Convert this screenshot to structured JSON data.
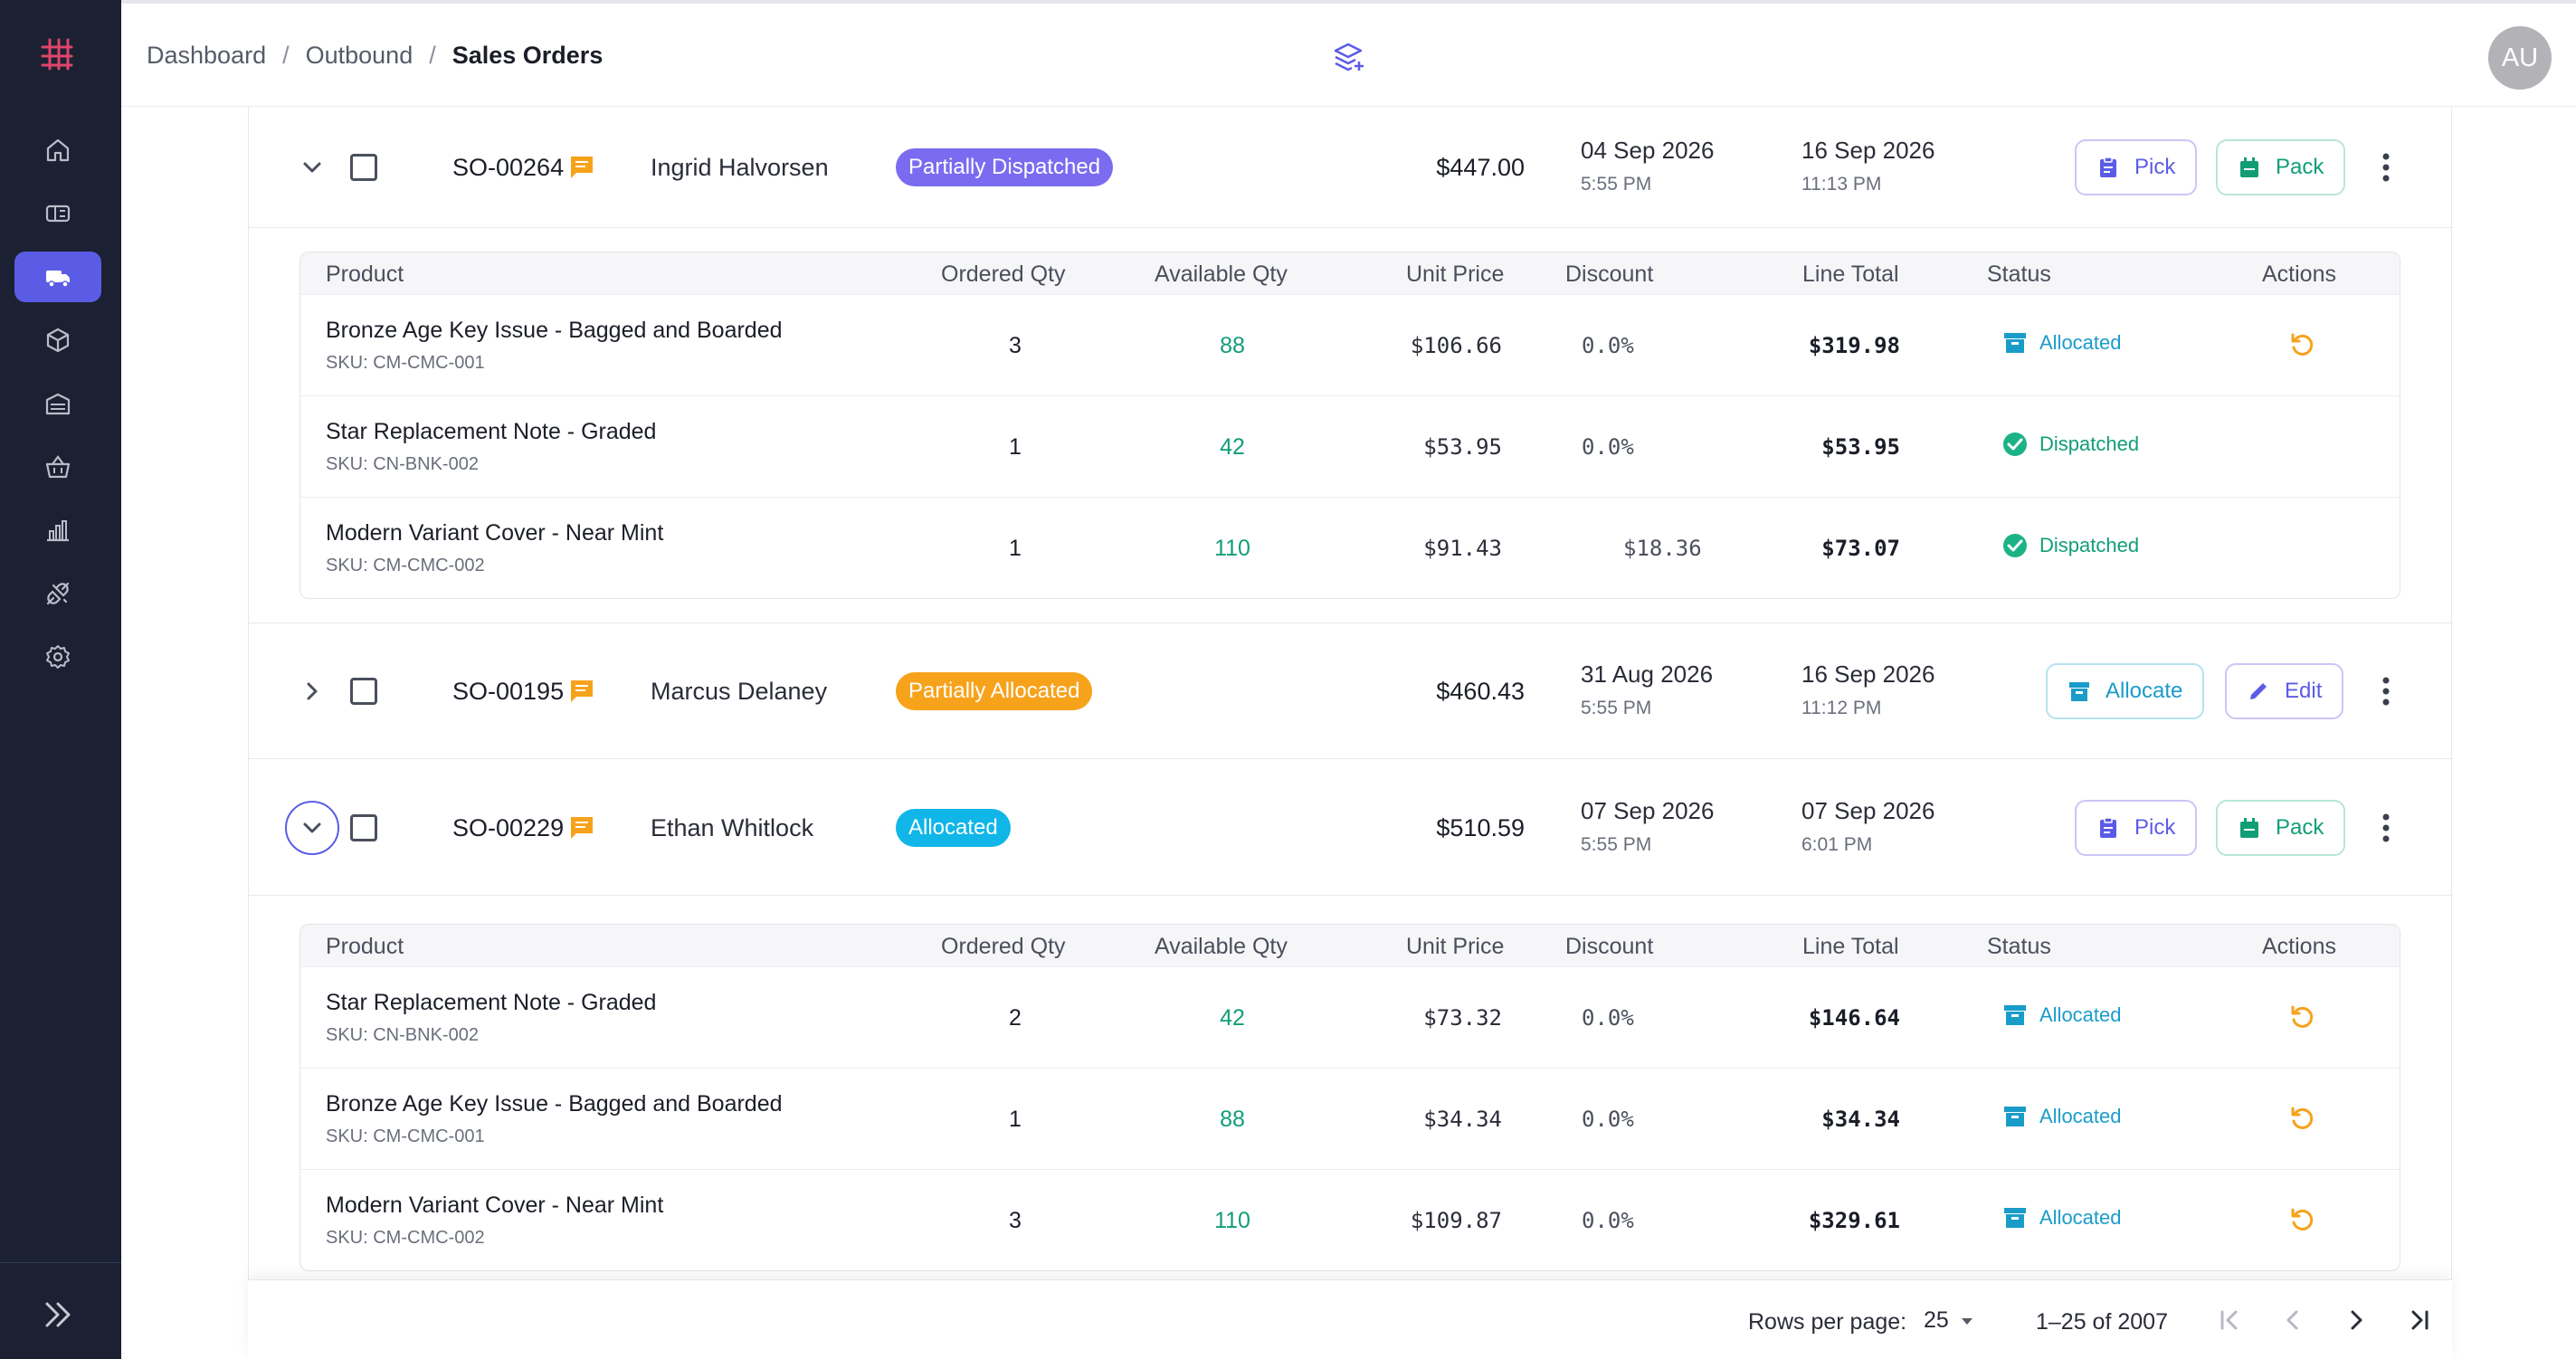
{
  "header": {
    "breadcrumbs": [
      "Dashboard",
      "Outbound",
      "Sales Orders"
    ],
    "avatar_initials": "AU"
  },
  "sidebar": {
    "items": [
      {
        "icon": "home-icon",
        "active": false
      },
      {
        "icon": "ticket-icon",
        "active": false
      },
      {
        "icon": "truck-icon",
        "active": true
      },
      {
        "icon": "box-icon",
        "active": false
      },
      {
        "icon": "warehouse-icon",
        "active": false
      },
      {
        "icon": "basket-icon",
        "active": false
      },
      {
        "icon": "bar-chart-icon",
        "active": false
      },
      {
        "icon": "plug-icon",
        "active": false
      },
      {
        "icon": "gear-icon",
        "active": false
      }
    ]
  },
  "table": {
    "line_headers": {
      "product": "Product",
      "ordered": "Ordered Qty",
      "available": "Available Qty",
      "unit_price": "Unit Price",
      "discount": "Discount",
      "line_total": "Line Total",
      "status": "Status",
      "actions": "Actions"
    },
    "orders": [
      {
        "so": "SO-00264",
        "customer": "Ingrid Halvorsen",
        "status": "Partially Dispatched",
        "amount": "$447.00",
        "date1": "04 Sep 2026",
        "time1": "5:55 PM",
        "date2": "16 Sep 2026",
        "time2": "11:13 PM",
        "actions": [
          "Pick",
          "Pack"
        ],
        "lines": [
          {
            "product": "Bronze Age Key Issue - Bagged and Boarded",
            "sku": "SKU: CM-CMC-001",
            "ordered": "3",
            "available": "88",
            "unit_price": "$106.66",
            "discount": "0.0%",
            "line_total": "$319.98",
            "status": "Allocated"
          },
          {
            "product": "Star Replacement Note - Graded",
            "sku": "SKU: CN-BNK-002",
            "ordered": "1",
            "available": "42",
            "unit_price": "$53.95",
            "discount": "0.0%",
            "line_total": "$53.95",
            "status": "Dispatched"
          },
          {
            "product": "Modern Variant Cover - Near Mint",
            "sku": "SKU: CM-CMC-002",
            "ordered": "1",
            "available": "110",
            "unit_price": "$91.43",
            "discount": "$18.36",
            "line_total": "$73.07",
            "status": "Dispatched"
          }
        ]
      },
      {
        "so": "SO-00195",
        "customer": "Marcus Delaney",
        "status": "Partially Allocated",
        "amount": "$460.43",
        "date1": "31 Aug 2026",
        "time1": "5:55 PM",
        "date2": "16 Sep 2026",
        "time2": "11:12 PM",
        "actions": [
          "Allocate",
          "Edit"
        ]
      },
      {
        "so": "SO-00229",
        "customer": "Ethan Whitlock",
        "status": "Allocated",
        "amount": "$510.59",
        "date1": "07 Sep 2026",
        "time1": "5:55 PM",
        "date2": "07 Sep 2026",
        "time2": "6:01 PM",
        "actions": [
          "Pick",
          "Pack"
        ],
        "lines": [
          {
            "product": "Star Replacement Note - Graded",
            "sku": "SKU: CN-BNK-002",
            "ordered": "2",
            "available": "42",
            "unit_price": "$73.32",
            "discount": "0.0%",
            "line_total": "$146.64",
            "status": "Allocated"
          },
          {
            "product": "Bronze Age Key Issue - Bagged and Boarded",
            "sku": "SKU: CM-CMC-001",
            "ordered": "1",
            "available": "88",
            "unit_price": "$34.34",
            "discount": "0.0%",
            "line_total": "$34.34",
            "status": "Allocated"
          },
          {
            "product": "Modern Variant Cover - Near Mint",
            "sku": "SKU: CM-CMC-002",
            "ordered": "3",
            "available": "110",
            "unit_price": "$109.87",
            "discount": "0.0%",
            "line_total": "$329.61",
            "status": "Allocated"
          }
        ]
      }
    ]
  },
  "pagination": {
    "rows_per_page_label": "Rows per page:",
    "rows_per_page": "25",
    "range": "1–25 of 2007"
  },
  "colors": {
    "sidebar_bg": "#1b2132",
    "accent": "#5b5ce6",
    "logo": "#e0456b",
    "partially_dispatched": "#7b6bf0",
    "partially_allocated": "#f7a21b",
    "allocated": "#10b6e8",
    "available_qty": "#119e77"
  }
}
